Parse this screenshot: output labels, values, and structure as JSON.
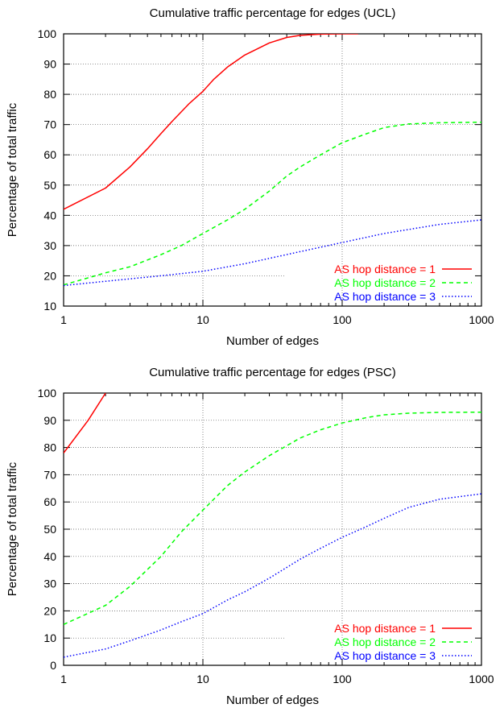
{
  "chart_data": [
    {
      "type": "line",
      "title": "Cumulative traffic percentage for edges (UCL)",
      "xlabel": "Number of edges",
      "ylabel": "Percentage of total traffic",
      "xscale": "log",
      "xlim": [
        1,
        1000
      ],
      "ylim": [
        10,
        100
      ],
      "x_ticks": [
        1,
        10,
        100,
        1000
      ],
      "x_tick_labels": [
        "1",
        "10",
        "100",
        "1000"
      ],
      "y_ticks": [
        10,
        20,
        30,
        40,
        50,
        60,
        70,
        80,
        90,
        100
      ],
      "y_tick_labels": [
        "10",
        "20",
        "30",
        "40",
        "50",
        "60",
        "70",
        "80",
        "90",
        "100"
      ],
      "grid": true,
      "legend_position": "bottom-right",
      "series": [
        {
          "name": "AS hop distance = 1",
          "color": "#ff0000",
          "dash": "solid",
          "x": [
            1,
            2,
            3,
            4,
            5,
            6,
            8,
            10,
            12,
            15,
            20,
            30,
            40,
            50,
            70,
            100,
            130
          ],
          "y": [
            42,
            49,
            56,
            62,
            67,
            71,
            77,
            81,
            85,
            89,
            93,
            97,
            98.8,
            99.5,
            99.9,
            100,
            100
          ]
        },
        {
          "name": "AS hop distance = 2",
          "color": "#00ff00",
          "dash": "dashed",
          "x": [
            1,
            2,
            3,
            5,
            7,
            10,
            15,
            20,
            30,
            40,
            50,
            70,
            100,
            150,
            200,
            300,
            500,
            1000
          ],
          "y": [
            17,
            21,
            23,
            27,
            30,
            34,
            38.5,
            42,
            48,
            53,
            56,
            60,
            64,
            67,
            69,
            70.2,
            70.6,
            70.8
          ]
        },
        {
          "name": "AS hop distance = 3",
          "color": "#0000ff",
          "dash": "dotted",
          "x": [
            1,
            2,
            5,
            10,
            20,
            50,
            100,
            200,
            500,
            1000
          ],
          "y": [
            16.8,
            18.2,
            20,
            21.5,
            24,
            28,
            31,
            34,
            37,
            38.5
          ]
        }
      ]
    },
    {
      "type": "line",
      "title": "Cumulative traffic percentage for edges (PSC)",
      "xlabel": "Number of edges",
      "ylabel": "Percentage of total traffic",
      "xscale": "log",
      "xlim": [
        1,
        1000
      ],
      "ylim": [
        0,
        100
      ],
      "x_ticks": [
        1,
        10,
        100,
        1000
      ],
      "x_tick_labels": [
        "1",
        "10",
        "100",
        "1000"
      ],
      "y_ticks": [
        0,
        10,
        20,
        30,
        40,
        50,
        60,
        70,
        80,
        90,
        100
      ],
      "y_tick_labels": [
        "0",
        "10",
        "20",
        "30",
        "40",
        "50",
        "60",
        "70",
        "80",
        "90",
        "100"
      ],
      "grid": true,
      "legend_position": "bottom-right",
      "series": [
        {
          "name": "AS hop distance = 1",
          "color": "#ff0000",
          "dash": "solid",
          "x": [
            1,
            1.5,
            2
          ],
          "y": [
            78,
            90,
            100
          ]
        },
        {
          "name": "AS hop distance = 2",
          "color": "#00ff00",
          "dash": "dashed",
          "x": [
            1,
            2,
            3,
            5,
            7,
            10,
            15,
            20,
            30,
            50,
            70,
            100,
            150,
            200,
            300,
            500,
            1000
          ],
          "y": [
            15,
            22,
            29,
            40,
            49,
            57,
            66,
            71,
            77,
            83.5,
            86.5,
            89,
            91,
            92,
            92.6,
            92.9,
            93
          ]
        },
        {
          "name": "AS hop distance = 3",
          "color": "#0000ff",
          "dash": "dotted",
          "x": [
            1,
            2,
            3,
            5,
            7,
            10,
            15,
            20,
            30,
            50,
            70,
            100,
            150,
            200,
            300,
            500,
            1000
          ],
          "y": [
            3,
            6,
            9,
            13,
            16,
            19,
            24,
            27,
            32,
            39,
            43,
            47,
            51,
            54,
            58,
            61,
            63
          ]
        }
      ]
    }
  ]
}
